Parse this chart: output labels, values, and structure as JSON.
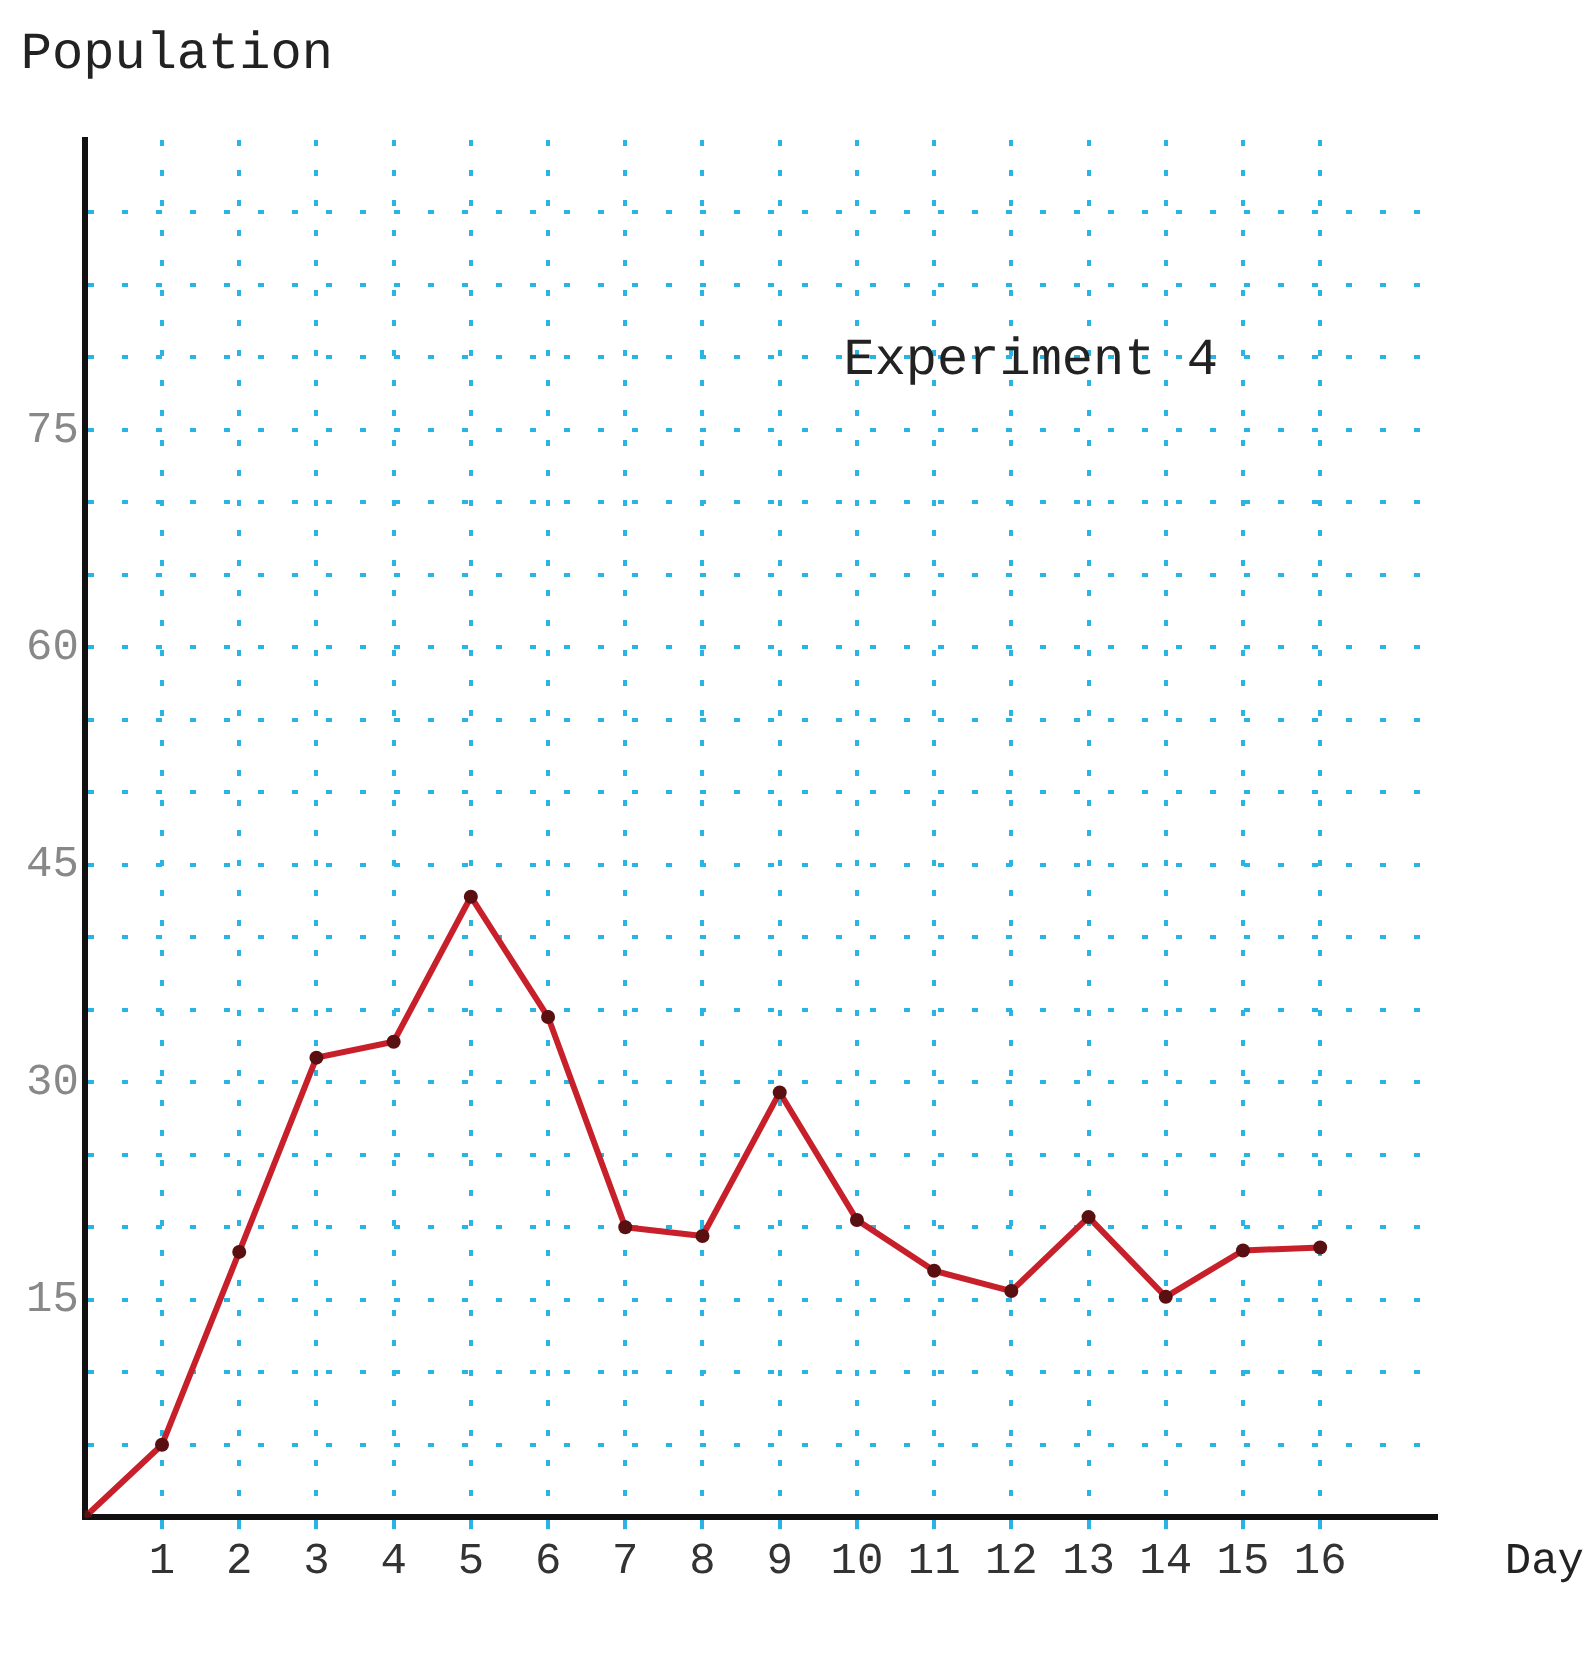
{
  "chart_data": {
    "type": "line",
    "title": "Experiment 4",
    "xlabel": "Day",
    "ylabel": "Population",
    "x": [
      0,
      1,
      2,
      3,
      4,
      5,
      6,
      7,
      8,
      9,
      10,
      11,
      12,
      13,
      14,
      15,
      16
    ],
    "series": [
      {
        "color": "#c8202a",
        "values": [
          0,
          5,
          18.3,
          31.7,
          32.8,
          42.8,
          34.5,
          20,
          19.4,
          29.3,
          20.5,
          17,
          15.6,
          20.7,
          15.2,
          18.4,
          18.6
        ]
      }
    ],
    "xlim": [
      0,
      17.5
    ],
    "xticks": [
      1,
      2,
      3,
      4,
      5,
      6,
      7,
      8,
      9,
      10,
      11,
      12,
      13,
      14,
      15,
      16
    ],
    "ylim": [
      0,
      95
    ],
    "yticks": [
      {
        "value": 5,
        "label": null
      },
      {
        "value": 10,
        "label": null
      },
      15,
      {
        "value": 20,
        "label": null
      },
      {
        "value": 25,
        "label": null
      },
      30,
      {
        "value": 35,
        "label": null
      },
      {
        "value": 40,
        "label": null
      },
      45,
      {
        "value": 50,
        "label": null
      },
      {
        "value": 55,
        "label": null
      },
      60,
      {
        "value": 65,
        "label": null
      },
      {
        "value": 70,
        "label": null
      },
      75,
      {
        "value": 80,
        "label": null
      },
      {
        "value": 85,
        "label": null
      },
      {
        "value": 90,
        "label": null
      }
    ],
    "grid": true,
    "marker": "circle",
    "line_style": "solid",
    "legend": false
  }
}
